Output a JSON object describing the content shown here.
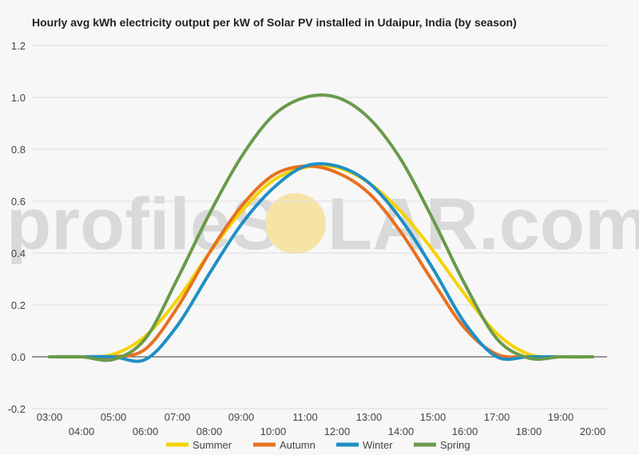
{
  "chart_data": {
    "type": "line",
    "title": "Hourly avg kWh electricity output per kW of Solar PV installed in Udaipur, India (by season)",
    "xlabel": "",
    "ylabel": "",
    "ylim": [
      -0.2,
      1.2
    ],
    "y_ticks": [
      "1.2",
      "1.0",
      "0.8",
      "0.6",
      "0.4",
      "0.2",
      "0.0",
      "-0.2"
    ],
    "y_tick_values": [
      1.2,
      1.0,
      0.8,
      0.6,
      0.4,
      0.2,
      0.0,
      -0.2
    ],
    "categories": [
      "03:00",
      "04:00",
      "05:00",
      "06:00",
      "07:00",
      "08:00",
      "09:00",
      "10:00",
      "11:00",
      "12:00",
      "13:00",
      "14:00",
      "15:00",
      "16:00",
      "17:00",
      "18:00",
      "19:00",
      "20:00"
    ],
    "grid": true,
    "legend_position": "bottom",
    "series": [
      {
        "name": "Summer",
        "color": "#f5d300",
        "values": [
          0,
          0,
          0.01,
          0.08,
          0.22,
          0.4,
          0.56,
          0.68,
          0.73,
          0.73,
          0.67,
          0.56,
          0.41,
          0.24,
          0.09,
          0.01,
          0,
          0
        ]
      },
      {
        "name": "Autumn",
        "color": "#e8711e",
        "values": [
          0,
          0,
          0,
          0.03,
          0.19,
          0.4,
          0.58,
          0.7,
          0.735,
          0.71,
          0.63,
          0.48,
          0.29,
          0.11,
          0.01,
          0,
          0,
          0
        ]
      },
      {
        "name": "Winter",
        "color": "#1f8fc4",
        "values": [
          0,
          0,
          0,
          -0.01,
          0.12,
          0.32,
          0.51,
          0.65,
          0.735,
          0.735,
          0.67,
          0.53,
          0.34,
          0.13,
          0,
          0,
          0,
          0
        ]
      },
      {
        "name": "Spring",
        "color": "#6a9a4a",
        "values": [
          0,
          0,
          -0.01,
          0.07,
          0.3,
          0.55,
          0.77,
          0.93,
          1.0,
          1.0,
          0.92,
          0.76,
          0.53,
          0.28,
          0.07,
          -0.005,
          0,
          0
        ]
      }
    ]
  },
  "watermark": {
    "text_left": "profileS",
    "text_right": "LAR.com",
    "sun_color": "#f6e3a6"
  }
}
